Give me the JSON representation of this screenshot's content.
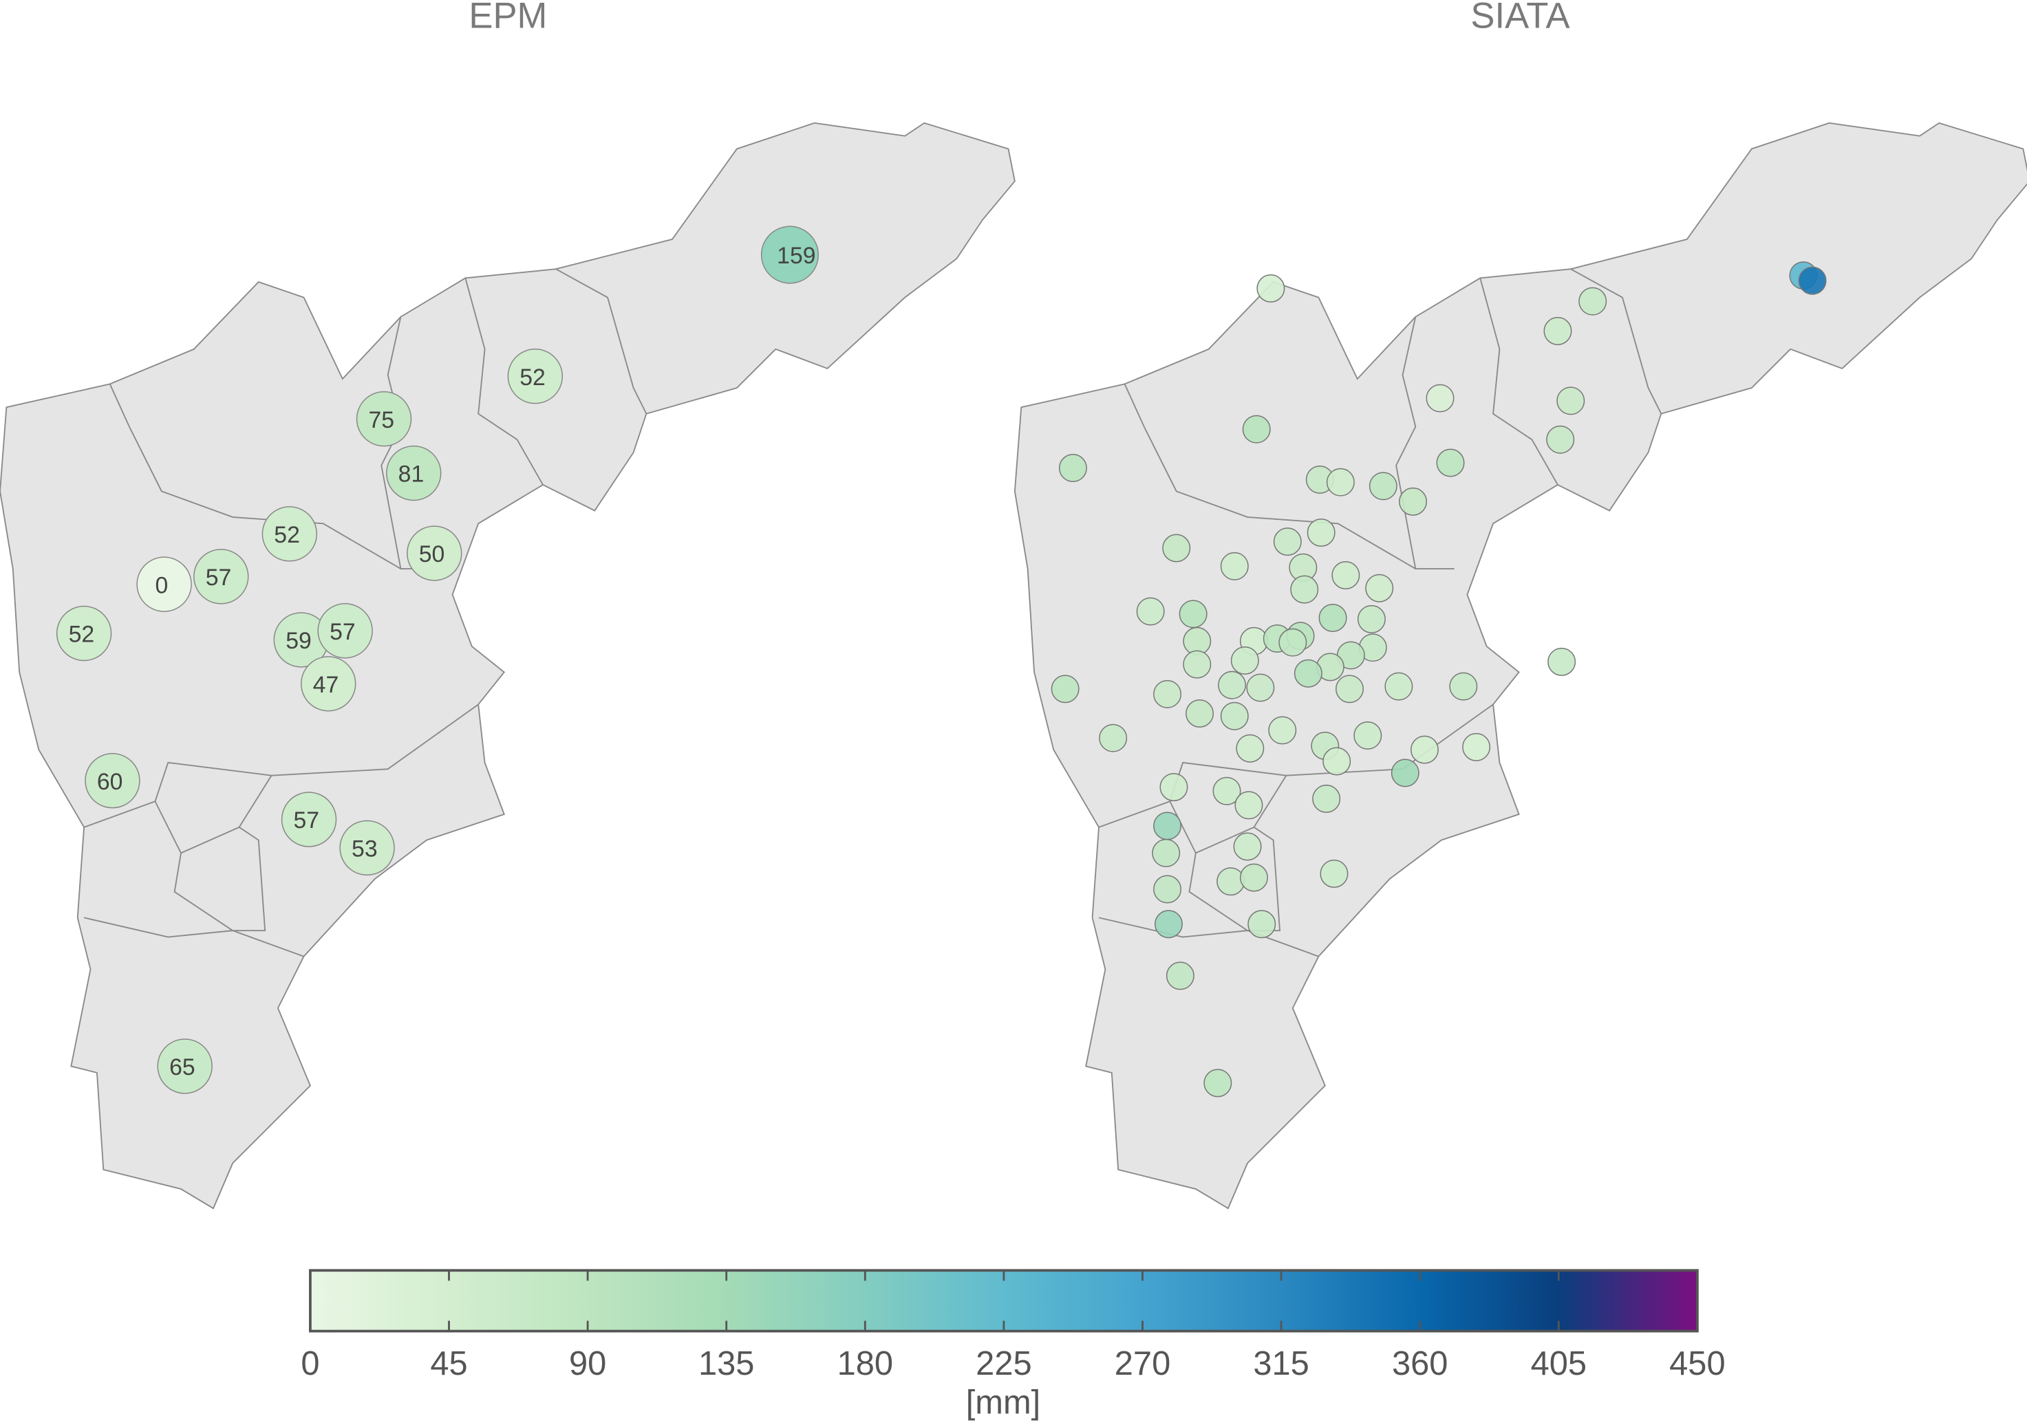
{
  "panels": [
    {
      "title": "EPM",
      "values": [
        159,
        52,
        75,
        81,
        52,
        50,
        0,
        57,
        52,
        59,
        57,
        47,
        60,
        57,
        53,
        65
      ]
    },
    {
      "title": "SIATA",
      "values": [
        40,
        70,
        60,
        230,
        340,
        35,
        65,
        100,
        70,
        95,
        90,
        70,
        55,
        85,
        75,
        75,
        65,
        55,
        55,
        65,
        55,
        55,
        70,
        60,
        100,
        110,
        70,
        75,
        45,
        90,
        100,
        80,
        70,
        60,
        85,
        75,
        65,
        105,
        70,
        90,
        65,
        70,
        65,
        60,
        70,
        65,
        75,
        70,
        55,
        60,
        70,
        55,
        70,
        50,
        45,
        40,
        140,
        55,
        60,
        55,
        70,
        150,
        80,
        60,
        80,
        65,
        75,
        60,
        150,
        70,
        80,
        90
      ]
    }
  ],
  "colorbar": {
    "label": "[mm]",
    "lim": [
      0,
      450
    ],
    "ticks": [
      0,
      45,
      90,
      135,
      180,
      225,
      270,
      315,
      360,
      405,
      450
    ],
    "colors": [
      "#e9f6e5",
      "#d3eecf",
      "#bde5bf",
      "#a4dbb6",
      "#83cdc1",
      "#5fbbcf",
      "#45a4cf",
      "#2b88c0",
      "#0868ac",
      "#0a3f7e",
      "#7b0f80"
    ]
  }
}
